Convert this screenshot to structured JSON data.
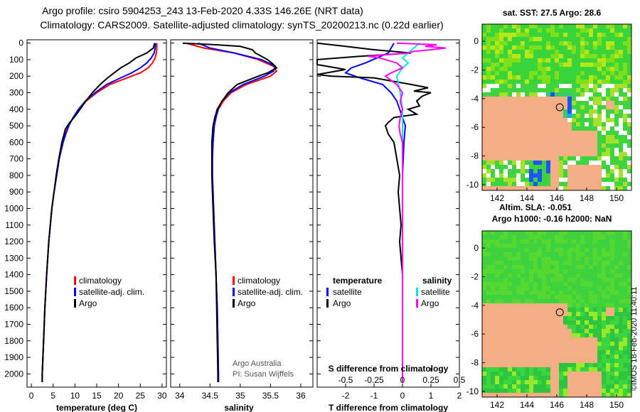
{
  "header": {
    "line1": "Argo profile: csiro 5904253_243 13-Feb-2020 4.33S 146.26E (NRT data)",
    "line2": "Climatology: CARS2009. Satellite-adjusted climatology: synTS_20200213.nc (0.22d earlier)"
  },
  "colors": {
    "climatology": "#ff0000",
    "satellite": "#0000ff",
    "argo": "#000000",
    "sat_salinity": "#00e5ee",
    "clim_salinity": "#ff00ff",
    "land": "#f4ae84"
  },
  "depth_ticks": [
    "0",
    "100",
    "200",
    "300",
    "400",
    "500",
    "600",
    "700",
    "800",
    "900",
    "1000",
    "1100",
    "1200",
    "1300",
    "1400",
    "1500",
    "1600",
    "1700",
    "1800",
    "1900",
    "2000"
  ],
  "chart_data": [
    {
      "type": "line",
      "name": "temperature",
      "xlabel": "temperature (deg C)",
      "ylabel": "depth",
      "xlim": [
        -1,
        31
      ],
      "ylim": [
        2080,
        0
      ],
      "xticks": [
        "0",
        "5",
        "10",
        "15",
        "20",
        "25",
        "30"
      ],
      "xtick_values": [
        0,
        5,
        10,
        15,
        20,
        25,
        30
      ],
      "legend": [
        "climatology",
        "satellite-adj. clim.",
        "Argo"
      ],
      "series": [
        {
          "name": "climatology",
          "color": "#ff0000",
          "depth": [
            0,
            30,
            60,
            90,
            120,
            150,
            180,
            210,
            250,
            300,
            350,
            400,
            450,
            500,
            550,
            600,
            700,
            800,
            900,
            1000,
            1200,
            1400,
            1600,
            1800,
            2000,
            2050
          ],
          "values": [
            28.8,
            28.8,
            28.7,
            28.4,
            27.8,
            26.8,
            25,
            22,
            18,
            15,
            12.6,
            10.9,
            9.6,
            8.5,
            7.8,
            7.2,
            6.4,
            5.8,
            5.2,
            4.7,
            4,
            3.5,
            3.1,
            2.8,
            2.5,
            2.5
          ]
        },
        {
          "name": "satellite-adj. clim.",
          "color": "#0000ff",
          "depth": [
            0,
            30,
            60,
            90,
            120,
            150,
            180,
            210,
            250,
            300,
            350,
            400,
            450,
            500,
            550,
            600,
            700,
            800,
            900,
            1000,
            1200,
            1400,
            1600,
            1800,
            2000,
            2050
          ],
          "values": [
            28.5,
            28.4,
            28.2,
            27.5,
            26.5,
            25,
            23,
            20.5,
            17.3,
            14.6,
            12.4,
            10.8,
            9.6,
            8.6,
            7.9,
            7.3,
            6.4,
            5.8,
            5.2,
            4.7,
            4,
            3.5,
            3.1,
            2.8,
            2.5,
            2.5
          ]
        },
        {
          "name": "Argo",
          "color": "#000000",
          "depth": [
            0,
            30,
            60,
            90,
            120,
            150,
            180,
            210,
            250,
            300,
            350,
            400,
            450,
            480,
            520,
            560,
            600,
            700,
            800,
            900,
            1000,
            1200,
            1400,
            1600,
            1800,
            2000,
            2050
          ],
          "values": [
            28.3,
            28,
            26.5,
            24,
            22.5,
            20.5,
            19,
            17.5,
            15.8,
            14,
            12.5,
            11.2,
            9.8,
            8.8,
            7.8,
            7.4,
            7,
            6.3,
            5.7,
            5.2,
            4.7,
            4,
            3.5,
            3.1,
            2.8,
            2.5,
            2.5
          ]
        }
      ]
    },
    {
      "type": "line",
      "name": "salinity",
      "xlabel": "salinity",
      "ylabel": "depth",
      "xlim": [
        33.85,
        36.2
      ],
      "ylim": [
        2080,
        0
      ],
      "xticks": [
        "34",
        "34.5",
        "35",
        "35.5",
        "36"
      ],
      "xtick_values": [
        34,
        34.5,
        35,
        35.5,
        36
      ],
      "legend": [
        "climatology",
        "satellite-adj. clim.",
        "Argo"
      ],
      "series": [
        {
          "name": "climatology",
          "color": "#ff0000",
          "depth": [
            0,
            30,
            60,
            100,
            140,
            170,
            200,
            250,
            300,
            350,
            400,
            450,
            500,
            600,
            700,
            800,
            900,
            1000,
            1200,
            1400,
            1600,
            1800,
            2000,
            2050
          ],
          "values": [
            34.1,
            34.4,
            34.9,
            35.3,
            35.55,
            35.6,
            35.5,
            35.1,
            34.85,
            34.72,
            34.64,
            34.6,
            34.57,
            34.55,
            34.54,
            34.54,
            34.55,
            34.56,
            34.58,
            34.6,
            34.62,
            34.63,
            34.64,
            34.64
          ]
        },
        {
          "name": "satellite-adj. clim.",
          "color": "#0000ff",
          "depth": [
            0,
            30,
            60,
            100,
            140,
            170,
            200,
            250,
            300,
            350,
            400,
            450,
            500,
            600,
            700,
            800,
            900,
            1000,
            1200,
            1400,
            1600,
            1800,
            2000,
            2050
          ],
          "values": [
            34.3,
            34.5,
            34.9,
            35.35,
            35.58,
            35.55,
            35.4,
            35.05,
            34.82,
            34.7,
            34.63,
            34.6,
            34.57,
            34.55,
            34.54,
            34.54,
            34.55,
            34.56,
            34.58,
            34.6,
            34.62,
            34.63,
            34.64,
            34.64
          ]
        },
        {
          "name": "Argo",
          "color": "#000000",
          "depth": [
            0,
            10,
            20,
            40,
            60,
            80,
            100,
            130,
            150,
            180,
            200,
            250,
            300,
            350,
            400,
            450,
            500,
            600,
            700,
            800,
            900,
            1000,
            1200,
            1400,
            1600,
            1800,
            2000,
            2050
          ],
          "values": [
            34.05,
            34.6,
            35,
            35.2,
            35.25,
            35.35,
            35.45,
            35.55,
            35.6,
            35.45,
            35.3,
            34.95,
            34.8,
            34.7,
            34.62,
            34.58,
            34.55,
            34.53,
            34.53,
            34.53,
            34.54,
            34.55,
            34.57,
            34.6,
            34.61,
            34.62,
            34.63,
            34.63
          ]
        }
      ]
    },
    {
      "type": "line",
      "name": "differences",
      "xlabel": "T difference from climatology",
      "xlabel_top": "S difference from climatology",
      "xlim_T": [
        -3,
        2
      ],
      "xticks_T": [
        "-2",
        "-1",
        "0",
        "1",
        "2"
      ],
      "xtick_values_T": [
        -2,
        -1,
        0,
        1,
        2
      ],
      "xlim_S": [
        -0.75,
        0.5
      ],
      "xticks_S": [
        "-0.5",
        "-0.25",
        "0",
        "0.25",
        "0.5"
      ],
      "xtick_values_S": [
        -0.5,
        -0.25,
        0,
        0.25,
        0.5
      ],
      "ylim": [
        2080,
        0
      ],
      "legend_temperature": [
        "temperature",
        "satellite",
        "Argo"
      ],
      "legend_salinity": [
        "salinity",
        "satellite",
        "Argo"
      ],
      "series": [
        {
          "name": "temperature satellite",
          "axis": "T",
          "color": "#0000ff",
          "depth": [
            0,
            30,
            60,
            90,
            120,
            150,
            180,
            210,
            250,
            300,
            350,
            400,
            450,
            500,
            600,
            800,
            1000,
            1500,
            2000,
            2050
          ],
          "values": [
            -0.3,
            -0.4,
            -0.5,
            -0.9,
            -1.3,
            -1.8,
            -2,
            -1.5,
            -0.7,
            -0.4,
            -0.2,
            -0.1,
            0,
            0.1,
            0.05,
            0,
            0,
            0,
            0,
            0
          ]
        },
        {
          "name": "temperature Argo",
          "axis": "T",
          "color": "#000000",
          "depth": [
            0,
            20,
            40,
            60,
            80,
            100,
            130,
            160,
            190,
            200,
            210,
            250,
            270,
            290,
            300,
            320,
            350,
            380,
            400,
            430,
            450,
            480,
            500,
            550,
            600,
            700,
            800,
            900,
            1000,
            1100,
            1200,
            1300,
            1400,
            1500,
            1800,
            2000,
            2050
          ],
          "values": [
            -3,
            -2,
            -1,
            0.3,
            -1.5,
            -3,
            -3,
            -2,
            -3,
            -2.5,
            -1,
            0.3,
            0.9,
            0.4,
            1,
            0.7,
            0.5,
            0.6,
            0.2,
            0.5,
            -0.3,
            -0.5,
            -0.6,
            -0.5,
            -0.3,
            -0.2,
            -0.1,
            -0.15,
            -0.1,
            -0.05,
            -0.1,
            -0.05,
            0,
            0,
            0,
            0,
            0
          ]
        },
        {
          "name": "salinity satellite",
          "axis": "S",
          "color": "#00e5ee",
          "depth": [
            0,
            30,
            60,
            90,
            120,
            150,
            200,
            300,
            400,
            500,
            600,
            800,
            1000,
            1500,
            2000,
            2050
          ],
          "values": [
            0.15,
            0.1,
            0.05,
            0,
            0.05,
            0,
            -0.05,
            -0.02,
            0,
            0,
            0,
            0,
            0,
            0,
            0,
            0
          ]
        },
        {
          "name": "salinity Argo",
          "axis": "S",
          "color": "#ff00ff",
          "depth": [
            0,
            10,
            20,
            30,
            40,
            50,
            60,
            70,
            80,
            90,
            100,
            120,
            150,
            180,
            200,
            250,
            300,
            350,
            400,
            450,
            500,
            550,
            600,
            800,
            1000,
            1500,
            2000,
            2050
          ],
          "values": [
            -0.05,
            0.3,
            0.2,
            0.38,
            0.25,
            0.1,
            0.05,
            -0.15,
            -0.3,
            -0.2,
            -0.15,
            -0.05,
            0,
            -0.1,
            -0.15,
            -0.05,
            0,
            -0.02,
            0,
            -0.02,
            -0.03,
            -0.02,
            0,
            0,
            0,
            0,
            0,
            0
          ]
        }
      ]
    }
  ],
  "maps": [
    {
      "title": "sat. SST: 27.5 Argo: 28.6",
      "xticks": [
        "142",
        "144",
        "146",
        "148",
        "150"
      ],
      "yticks": [
        "0",
        "-2",
        "-4",
        "-6",
        "-8",
        "-10"
      ]
    },
    {
      "title_line1": "Altim. SLA: -0.051",
      "title_line2": "Argo h1000: -0.16 h2000: NaN",
      "xticks": [
        "142",
        "144",
        "146",
        "148",
        "150"
      ],
      "yticks": [
        "0",
        "-2",
        "-4",
        "-6",
        "-8",
        "-10"
      ]
    }
  ],
  "credits": {
    "line1": "Argo Australia",
    "line2": "PI: Susan Wijffels"
  },
  "timestamp": "©IMOS 18-Feb-2020 11:40:11"
}
